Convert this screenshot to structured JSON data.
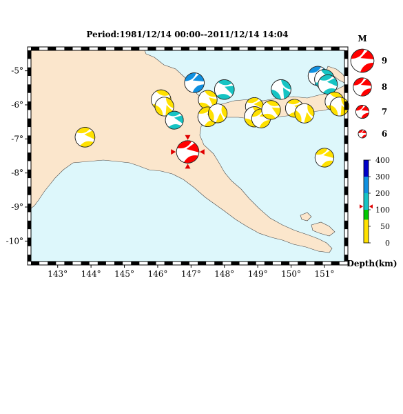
{
  "title": "Period:1981/12/14 00:00--2011/12/14 14:04",
  "map": {
    "extent": {
      "lon": [
        142.2,
        151.6
      ],
      "lat": [
        -10.6,
        -4.4
      ]
    },
    "colors": {
      "land": "#fbe6cc",
      "sea": "#ddf7fb",
      "coast": "#444444"
    },
    "lon_ticks": [
      {
        "v": 143,
        "label": "143°"
      },
      {
        "v": 144,
        "label": "144°"
      },
      {
        "v": 145,
        "label": "145°"
      },
      {
        "v": 146,
        "label": "146°"
      },
      {
        "v": 147,
        "label": "147°"
      },
      {
        "v": 148,
        "label": "148°"
      },
      {
        "v": 149,
        "label": "149°"
      },
      {
        "v": 150,
        "label": "150°"
      },
      {
        "v": 151,
        "label": "151°"
      }
    ],
    "lat_ticks": [
      {
        "v": -5,
        "label": "-5°"
      },
      {
        "v": -6,
        "label": "-6°"
      },
      {
        "v": -7,
        "label": "-7°"
      },
      {
        "v": -8,
        "label": "-8°"
      },
      {
        "v": -9,
        "label": "-9°"
      },
      {
        "v": -10,
        "label": "-10°"
      }
    ]
  },
  "events": [
    {
      "lon": 146.9,
      "lat": -7.38,
      "mag": 7.0,
      "color": "#ff0000",
      "rot": 20,
      "target": true
    },
    {
      "lon": 143.82,
      "lat": -6.95,
      "mag": 6.4,
      "color": "#ffe100",
      "rot": 30
    },
    {
      "lon": 146.1,
      "lat": -5.85,
      "mag": 6.4,
      "color": "#ffe100",
      "rot": 60
    },
    {
      "lon": 146.2,
      "lat": -6.05,
      "mag": 6.2,
      "color": "#ffe100",
      "rot": 100
    },
    {
      "lon": 146.5,
      "lat": -6.45,
      "mag": 6.0,
      "color": "#16c4c4",
      "rot": 40
    },
    {
      "lon": 147.1,
      "lat": -5.35,
      "mag": 6.4,
      "color": "#1090e0",
      "rot": 10
    },
    {
      "lon": 147.5,
      "lat": -5.85,
      "mag": 6.2,
      "color": "#ffe100",
      "rot": 70
    },
    {
      "lon": 147.5,
      "lat": -6.35,
      "mag": 6.4,
      "color": "#ffe100",
      "rot": 20
    },
    {
      "lon": 147.8,
      "lat": -6.25,
      "mag": 6.2,
      "color": "#ffe100",
      "rot": 120
    },
    {
      "lon": 148.0,
      "lat": -5.55,
      "mag": 6.4,
      "color": "#16c4c4",
      "rot": 50
    },
    {
      "lon": 148.9,
      "lat": -6.05,
      "mag": 6.0,
      "color": "#ffe100",
      "rot": 30
    },
    {
      "lon": 148.9,
      "lat": -6.35,
      "mag": 6.5,
      "color": "#ffe100",
      "rot": 80
    },
    {
      "lon": 149.1,
      "lat": -6.4,
      "mag": 6.2,
      "color": "#ffe100",
      "rot": 10
    },
    {
      "lon": 149.4,
      "lat": -6.15,
      "mag": 6.2,
      "color": "#ffe100",
      "rot": 60
    },
    {
      "lon": 149.7,
      "lat": -5.55,
      "mag": 6.4,
      "color": "#16c4c4",
      "rot": 90
    },
    {
      "lon": 150.1,
      "lat": -6.1,
      "mag": 6.0,
      "color": "#ffe100",
      "rot": 40
    },
    {
      "lon": 150.4,
      "lat": -6.25,
      "mag": 6.3,
      "color": "#ffe100",
      "rot": 110
    },
    {
      "lon": 150.8,
      "lat": -5.15,
      "mag": 6.3,
      "color": "#1090e0",
      "rot": 20
    },
    {
      "lon": 151.0,
      "lat": -5.25,
      "mag": 6.4,
      "color": "#16c4c4",
      "rot": 70
    },
    {
      "lon": 151.1,
      "lat": -5.4,
      "mag": 6.3,
      "color": "#16c4c4",
      "rot": 30
    },
    {
      "lon": 151.3,
      "lat": -5.9,
      "mag": 6.2,
      "color": "#ffe100",
      "rot": 60
    },
    {
      "lon": 151.45,
      "lat": -6.05,
      "mag": 6.2,
      "color": "#ffe100",
      "rot": 100
    },
    {
      "lon": 151.0,
      "lat": -7.55,
      "mag": 6.2,
      "color": "#ffe100",
      "rot": 20
    }
  ],
  "magnitude_legend": {
    "title": "M",
    "items": [
      {
        "mag": 9,
        "label": "9"
      },
      {
        "mag": 8,
        "label": "8"
      },
      {
        "mag": 7,
        "label": "7"
      },
      {
        "mag": 6,
        "label": "6"
      }
    ]
  },
  "depth_scale": {
    "title": "Depth(km)",
    "range": [
      0,
      400
    ],
    "bands": [
      {
        "from": 0,
        "to": 50,
        "color": "#ffe100"
      },
      {
        "from": 50,
        "to": 70,
        "color": "#ffe100"
      },
      {
        "from": 70,
        "to": 100,
        "color": "#00c800"
      },
      {
        "from": 100,
        "to": 150,
        "color": "#16c4c4"
      },
      {
        "from": 150,
        "to": 200,
        "color": "#16c4c4"
      },
      {
        "from": 200,
        "to": 300,
        "color": "#1090e0"
      },
      {
        "from": 300,
        "to": 400,
        "color": "#0000c8"
      }
    ],
    "ticks": [
      {
        "v": 0,
        "label": "0"
      },
      {
        "v": 50,
        "label": "50"
      },
      {
        "v": 100,
        "label": "100"
      },
      {
        "v": 200,
        "label": "200"
      },
      {
        "v": 300,
        "label": "300"
      },
      {
        "v": 400,
        "label": "400"
      }
    ],
    "marker_depth": 120
  }
}
